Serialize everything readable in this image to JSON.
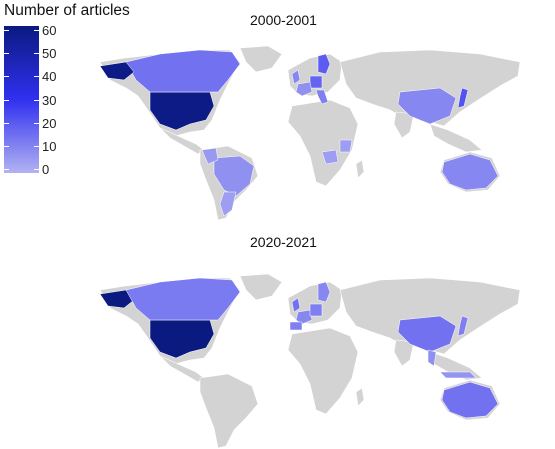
{
  "legend": {
    "title": "Number of articles",
    "ticks": [
      {
        "label": "60",
        "value": 60
      },
      {
        "label": "50",
        "value": 50
      },
      {
        "label": "40",
        "value": 40
      },
      {
        "label": "30",
        "value": 30
      },
      {
        "label": "20",
        "value": 20
      },
      {
        "label": "10",
        "value": 10
      },
      {
        "label": "0",
        "value": 0
      }
    ],
    "scale": {
      "min": 0,
      "max": 60,
      "low_color": "#b3b3f2",
      "mid_color": "#3030f0",
      "high_color": "#0a1a80"
    },
    "no_data_color": "#d3d3d3"
  },
  "panels": [
    {
      "title": "2000-2001",
      "countries": [
        {
          "name": "USA",
          "value": 58
        },
        {
          "name": "Canada",
          "value": 15
        },
        {
          "name": "Alaska",
          "value": 58
        },
        {
          "name": "Brazil",
          "value": 8
        },
        {
          "name": "Colombia",
          "value": 6
        },
        {
          "name": "Germany",
          "value": 18
        },
        {
          "name": "UK",
          "value": 10
        },
        {
          "name": "France",
          "value": 8
        },
        {
          "name": "Sweden",
          "value": 20
        },
        {
          "name": "Italy",
          "value": 12
        },
        {
          "name": "China",
          "value": 10
        },
        {
          "name": "Japan",
          "value": 22
        },
        {
          "name": "Australia",
          "value": 10
        },
        {
          "name": "Zambia",
          "value": 5
        },
        {
          "name": "Tanzania",
          "value": 5
        },
        {
          "name": "Argentina",
          "value": 5
        }
      ]
    },
    {
      "title": "2020-2021",
      "countries": [
        {
          "name": "USA",
          "value": 60
        },
        {
          "name": "Alaska",
          "value": 60
        },
        {
          "name": "Canada",
          "value": 13
        },
        {
          "name": "UK",
          "value": 15
        },
        {
          "name": "France",
          "value": 10
        },
        {
          "name": "Germany",
          "value": 12
        },
        {
          "name": "Sweden",
          "value": 10
        },
        {
          "name": "Spain",
          "value": 12
        },
        {
          "name": "China",
          "value": 15
        },
        {
          "name": "Japan",
          "value": 12
        },
        {
          "name": "Australia",
          "value": 15
        },
        {
          "name": "Thailand",
          "value": 8
        },
        {
          "name": "Indonesia",
          "value": 7
        }
      ]
    }
  ]
}
